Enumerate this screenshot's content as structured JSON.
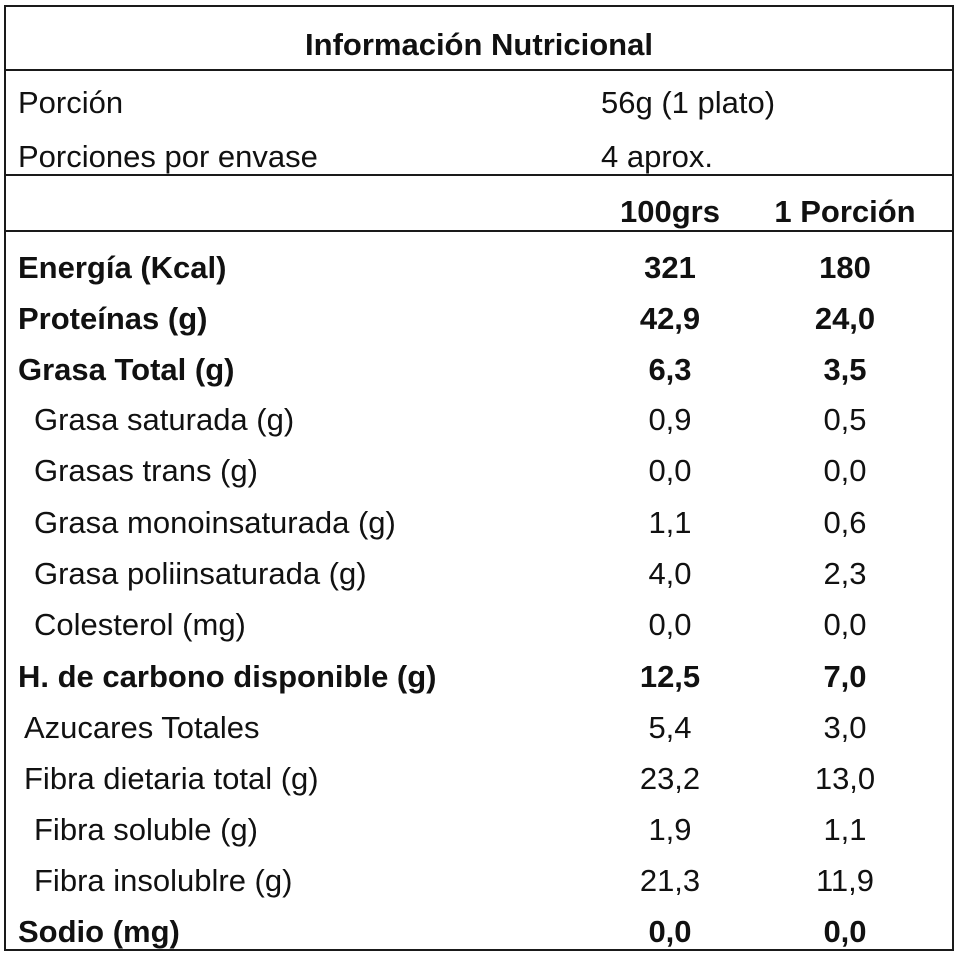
{
  "title": "Información Nutricional",
  "serving": {
    "label": "Porción",
    "value": "56g (1 plato)"
  },
  "servings_per_container": {
    "label": "Porciones por envase",
    "value": "4 aprox."
  },
  "columns": {
    "per100": "100grs",
    "per_serving": "1 Porción"
  },
  "rows": [
    {
      "label": "Energía (Kcal)",
      "per100": "321",
      "per_serving": "180"
    },
    {
      "label": "Proteínas (g)",
      "per100": "42,9",
      "per_serving": "24,0"
    },
    {
      "label": "Grasa Total (g)",
      "per100": "6,3",
      "per_serving": "3,5"
    },
    {
      "label": "Grasa saturada (g)",
      "per100": "0,9",
      "per_serving": "0,5"
    },
    {
      "label": "Grasas trans (g)",
      "per100": "0,0",
      "per_serving": "0,0"
    },
    {
      "label": "Grasa monoinsaturada (g)",
      "per100": "1,1",
      "per_serving": "0,6"
    },
    {
      "label": "Grasa poliinsaturada (g)",
      "per100": "4,0",
      "per_serving": "2,3"
    },
    {
      "label": "Colesterol (mg)",
      "per100": "0,0",
      "per_serving": "0,0"
    },
    {
      "label": "H. de carbono disponible (g)",
      "per100": "12,5",
      "per_serving": "7,0"
    },
    {
      "label": "Azucares Totales",
      "per100": "5,4",
      "per_serving": "3,0"
    },
    {
      "label": "Fibra dietaria total (g)",
      "per100": "23,2",
      "per_serving": "13,0"
    },
    {
      "label": "Fibra soluble (g)",
      "per100": "1,9",
      "per_serving": "1,1"
    },
    {
      "label": "Fibra insolublre (g)",
      "per100": "21,3",
      "per_serving": "11,9"
    },
    {
      "label": "Sodio (mg)",
      "per100": "0,0",
      "per_serving": "0,0"
    }
  ]
}
